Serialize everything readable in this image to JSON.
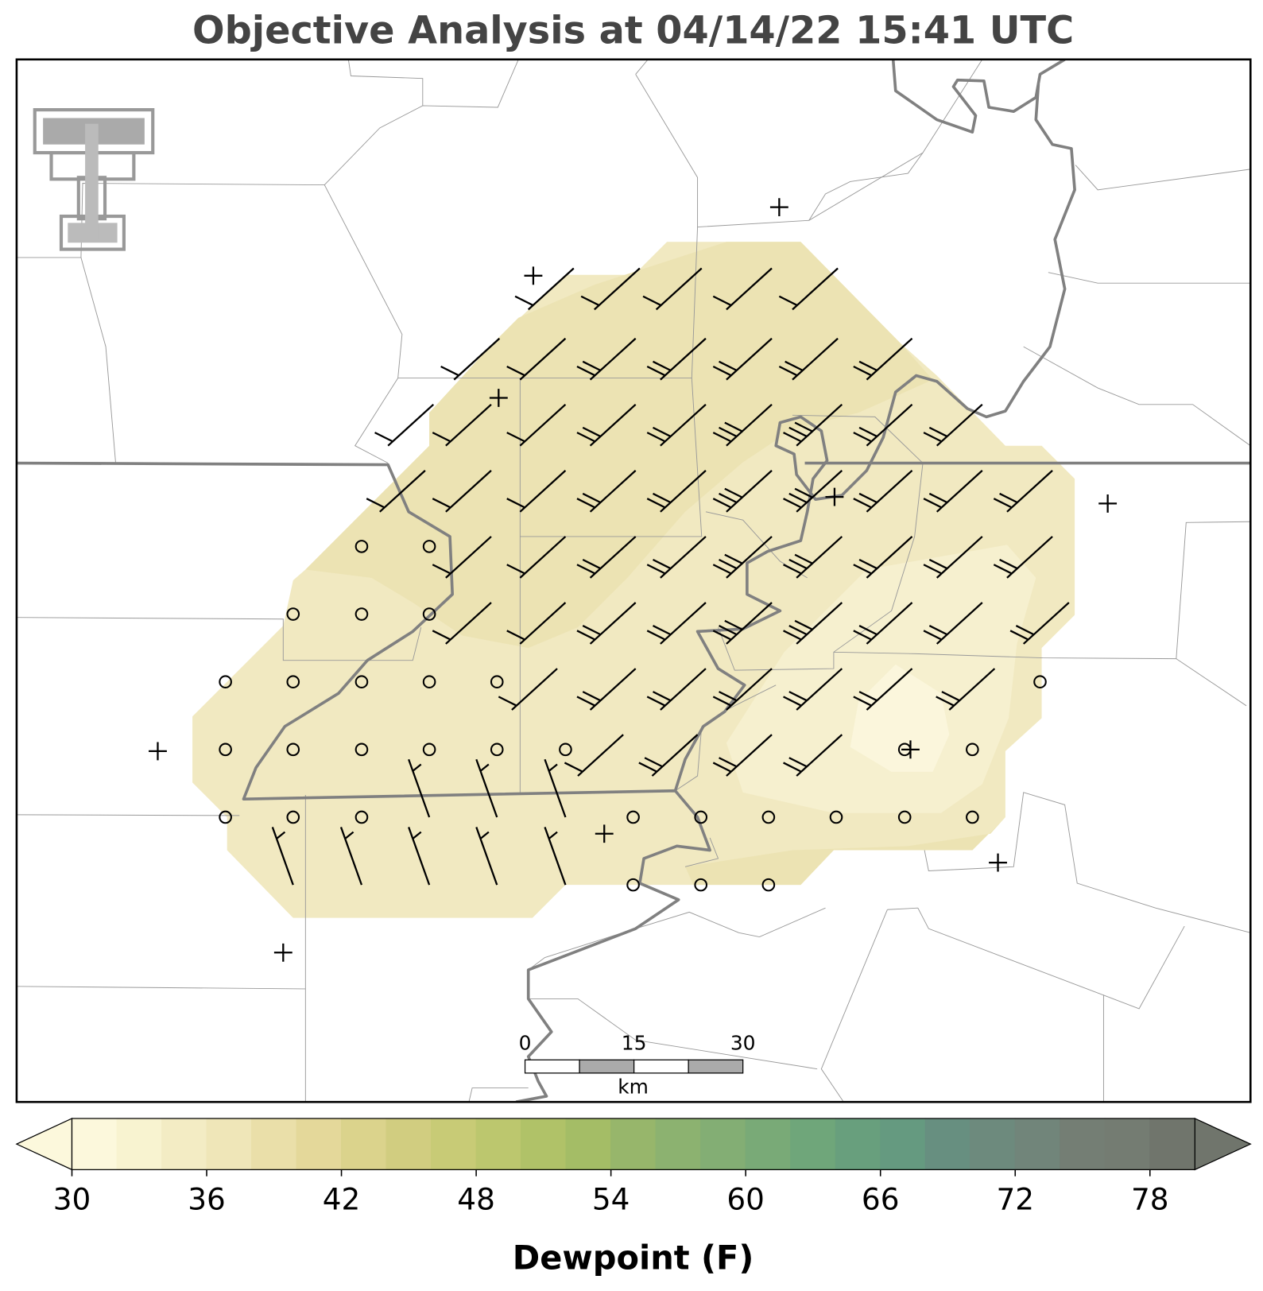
{
  "title": "Objective Analysis at 04/14/22 15:41 UTC",
  "scale_bar": {
    "ticks": [
      0,
      15,
      30
    ],
    "xlim": [
      0,
      30
    ],
    "unit": "km"
  },
  "colorbar": {
    "label": "Dewpoint (F)",
    "lim": [
      30,
      80
    ],
    "levels": [
      30,
      32,
      34,
      36,
      38,
      40,
      42,
      44,
      46,
      48,
      50,
      52,
      54,
      56,
      58,
      60,
      62,
      64,
      66,
      68,
      70,
      72,
      74,
      76,
      78,
      80
    ],
    "colors": [
      "#fcf8dc",
      "#f8f3d0",
      "#f3ecc4",
      "#efe6b8",
      "#eadfa9",
      "#e4d89a",
      "#dbd38c",
      "#d1cd80",
      "#c8cb76",
      "#bcc76e",
      "#b0c268",
      "#a4bd66",
      "#97b66b",
      "#8cb270",
      "#83ae74",
      "#79aa77",
      "#6fa67a",
      "#689f7d",
      "#659a80",
      "#678f80",
      "#6d8a7d",
      "#71857a",
      "#747e74",
      "#747c72",
      "#70756c"
    ],
    "ticks": [
      30,
      36,
      42,
      48,
      54,
      60,
      66,
      72,
      78
    ]
  }
}
